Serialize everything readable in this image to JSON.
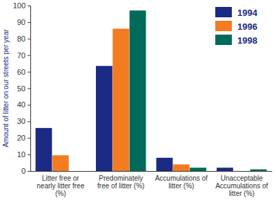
{
  "chart_data": {
    "type": "bar",
    "categories": [
      "Litter free or nearly litter free (%)",
      "Predominately free of litter (%)",
      "Accumulations of litter (%)",
      "Unacceptable Accumulations of litter (%)"
    ],
    "series": [
      {
        "name": "1994",
        "color": "#1b2a84",
        "values": [
          26,
          63.5,
          8,
          2
        ]
      },
      {
        "name": "1996",
        "color": "#f47b20",
        "values": [
          9.5,
          86,
          4,
          0
        ]
      },
      {
        "name": "1998",
        "color": "#006b5a",
        "values": [
          0,
          97,
          2,
          1
        ]
      }
    ],
    "ylim": [
      0,
      100
    ],
    "yticks": [
      0,
      10,
      20,
      30,
      40,
      50,
      60,
      70,
      80,
      90,
      100
    ],
    "y_label": "Amount of litter on our streets per year",
    "legend": "upper right",
    "grid": false
  }
}
